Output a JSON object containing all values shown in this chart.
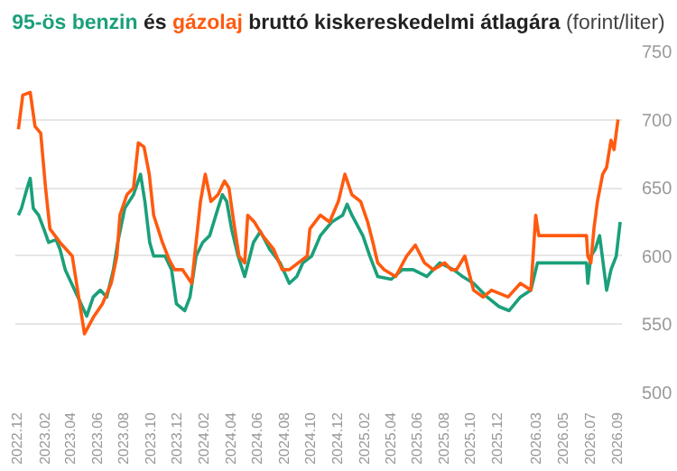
{
  "chart_data": {
    "type": "line",
    "title": "bruttó kiskereskedelmi átlagára",
    "subtitle": "(forint/liter)",
    "annotations": [
      "és"
    ],
    "legend": "top",
    "ylim": [
      500,
      750
    ],
    "yticks": [
      500,
      550,
      600,
      650,
      700,
      750
    ],
    "grid": "y",
    "line_style": "solid",
    "marker": "none",
    "xlim": [
      "2022-11-28",
      "2026-09-14"
    ],
    "xticks": [
      {
        "value": "2022-12-01",
        "label": "2022.12"
      },
      {
        "value": "2023-02-01",
        "label": "2023.02"
      },
      {
        "value": "2023-04-01",
        "label": "2023.04"
      },
      {
        "value": "2023-06-01",
        "label": "2023.06"
      },
      {
        "value": "2023-08-01",
        "label": "2023.08"
      },
      {
        "value": "2023-10-01",
        "label": "2023.10"
      },
      {
        "value": "2023-12-01",
        "label": "2023.12"
      },
      {
        "value": "2024-02-01",
        "label": "2024.02"
      },
      {
        "value": "2024-04-01",
        "label": "2024.04"
      },
      {
        "value": "2024-06-01",
        "label": "2024.06"
      },
      {
        "value": "2024-08-01",
        "label": "2024.08"
      },
      {
        "value": "2024-10-01",
        "label": "2024.10"
      },
      {
        "value": "2024-12-01",
        "label": "2024.12"
      },
      {
        "value": "2025-02-01",
        "label": "2025.02"
      },
      {
        "value": "2025-04-01",
        "label": "2025.04"
      },
      {
        "value": "2025-06-01",
        "label": "2025.06"
      },
      {
        "value": "2025-08-01",
        "label": "2025.08"
      },
      {
        "value": "2025-10-01",
        "label": "2025.10"
      },
      {
        "value": "2025-12-01",
        "label": "2025.12"
      },
      {
        "value": "2026-03-01",
        "label": "2026.03"
      },
      {
        "value": "2026-05-01",
        "label": "2026.05"
      },
      {
        "value": "2026-07-01",
        "label": "2026.07"
      },
      {
        "value": "2026-09-01",
        "label": "2026.09"
      }
    ],
    "series": [
      {
        "name": "95-ös benzin",
        "color": "#1aa07a",
        "x": [
          "2022-12-05",
          "2022-12-12",
          "2022-12-25",
          "2023-01-01",
          "2023-01-08",
          "2023-01-20",
          "2023-02-01",
          "2023-02-12",
          "2023-03-01",
          "2023-03-10",
          "2023-03-22",
          "2023-05-10",
          "2023-05-25",
          "2023-06-10",
          "2023-06-25",
          "2023-07-10",
          "2023-07-20",
          "2023-08-05",
          "2023-08-25",
          "2023-09-10",
          "2023-09-20",
          "2023-10-01",
          "2023-10-10",
          "2023-11-05",
          "2023-11-20",
          "2023-12-01",
          "2023-12-20",
          "2024-01-01",
          "2024-01-15",
          "2024-01-30",
          "2024-02-15",
          "2024-03-05",
          "2024-03-15",
          "2024-03-25",
          "2024-04-05",
          "2024-04-20",
          "2024-05-05",
          "2024-05-25",
          "2024-06-10",
          "2024-07-01",
          "2024-07-25",
          "2024-08-15",
          "2024-09-01",
          "2024-09-15",
          "2024-10-05",
          "2024-10-25",
          "2024-11-20",
          "2024-12-15",
          "2024-12-25",
          "2025-01-05",
          "2025-01-30",
          "2025-02-15",
          "2025-03-05",
          "2025-04-05",
          "2025-04-30",
          "2025-05-25",
          "2025-06-25",
          "2025-07-25",
          "2025-08-25",
          "2025-09-15",
          "2025-10-10",
          "2025-11-10",
          "2025-12-07",
          "2025-12-30",
          "2026-01-25",
          "2026-02-18",
          "2026-03-05",
          "2026-06-25",
          "2026-06-28",
          "2026-07-05",
          "2026-07-15",
          "2026-07-25",
          "2026-08-10",
          "2026-08-20",
          "2026-09-01",
          "2026-09-10"
        ],
        "values": [
          630,
          635,
          650,
          657,
          635,
          630,
          620,
          610,
          612,
          605,
          590,
          556,
          570,
          575,
          570,
          590,
          610,
          635,
          645,
          660,
          640,
          610,
          600,
          600,
          590,
          565,
          560,
          570,
          600,
          610,
          615,
          635,
          645,
          640,
          620,
          600,
          585,
          610,
          618,
          605,
          595,
          580,
          585,
          595,
          600,
          615,
          625,
          630,
          638,
          630,
          615,
          600,
          585,
          583,
          590,
          590,
          585,
          595,
          590,
          585,
          580,
          570,
          563,
          560,
          570,
          575,
          595,
          595,
          580,
          600,
          605,
          615,
          575,
          590,
          600,
          625
        ]
      },
      {
        "name": "gázolaj",
        "color": "#ff5a0f",
        "x": [
          "2022-12-05",
          "2022-12-15",
          "2023-01-01",
          "2023-01-12",
          "2023-01-25",
          "2023-02-05",
          "2023-02-15",
          "2023-03-10",
          "2023-04-07",
          "2023-05-05",
          "2023-05-25",
          "2023-06-15",
          "2023-07-05",
          "2023-07-18",
          "2023-07-25",
          "2023-08-10",
          "2023-08-25",
          "2023-09-05",
          "2023-09-18",
          "2023-09-30",
          "2023-10-10",
          "2023-10-30",
          "2023-11-15",
          "2023-11-27",
          "2023-12-15",
          "2024-01-05",
          "2024-01-15",
          "2024-01-25",
          "2024-02-05",
          "2024-02-18",
          "2024-03-05",
          "2024-03-20",
          "2024-03-30",
          "2024-04-10",
          "2024-04-22",
          "2024-05-05",
          "2024-05-12",
          "2024-05-27",
          "2024-06-15",
          "2024-07-10",
          "2024-07-30",
          "2024-08-15",
          "2024-09-25",
          "2024-10-01",
          "2024-10-25",
          "2024-11-15",
          "2024-12-05",
          "2024-12-20",
          "2025-01-05",
          "2025-01-25",
          "2025-02-10",
          "2025-02-22",
          "2025-03-05",
          "2025-03-20",
          "2025-04-15",
          "2025-05-10",
          "2025-05-30",
          "2025-06-20",
          "2025-07-10",
          "2025-08-05",
          "2025-08-20",
          "2025-09-01",
          "2025-09-20",
          "2025-10-10",
          "2025-11-01",
          "2025-11-20",
          "2025-12-28",
          "2026-01-25",
          "2026-02-18",
          "2026-03-01",
          "2026-03-08",
          "2026-06-25",
          "2026-06-28",
          "2026-07-05",
          "2026-07-12",
          "2026-07-20",
          "2026-08-01",
          "2026-08-10",
          "2026-08-20",
          "2026-08-27",
          "2026-09-05"
        ],
        "values": [
          693,
          718,
          720,
          695,
          690,
          650,
          620,
          610,
          600,
          543,
          555,
          565,
          580,
          600,
          630,
          645,
          650,
          683,
          680,
          660,
          630,
          610,
          597,
          590,
          590,
          580,
          610,
          640,
          660,
          640,
          645,
          655,
          650,
          625,
          600,
          595,
          630,
          625,
          615,
          605,
          590,
          590,
          600,
          620,
          630,
          625,
          640,
          660,
          645,
          640,
          625,
          610,
          595,
          590,
          585,
          600,
          608,
          595,
          590,
          595,
          590,
          590,
          600,
          575,
          570,
          575,
          570,
          580,
          575,
          630,
          615,
          615,
          600,
          595,
          620,
          640,
          660,
          665,
          685,
          678,
          700
        ]
      }
    ]
  }
}
